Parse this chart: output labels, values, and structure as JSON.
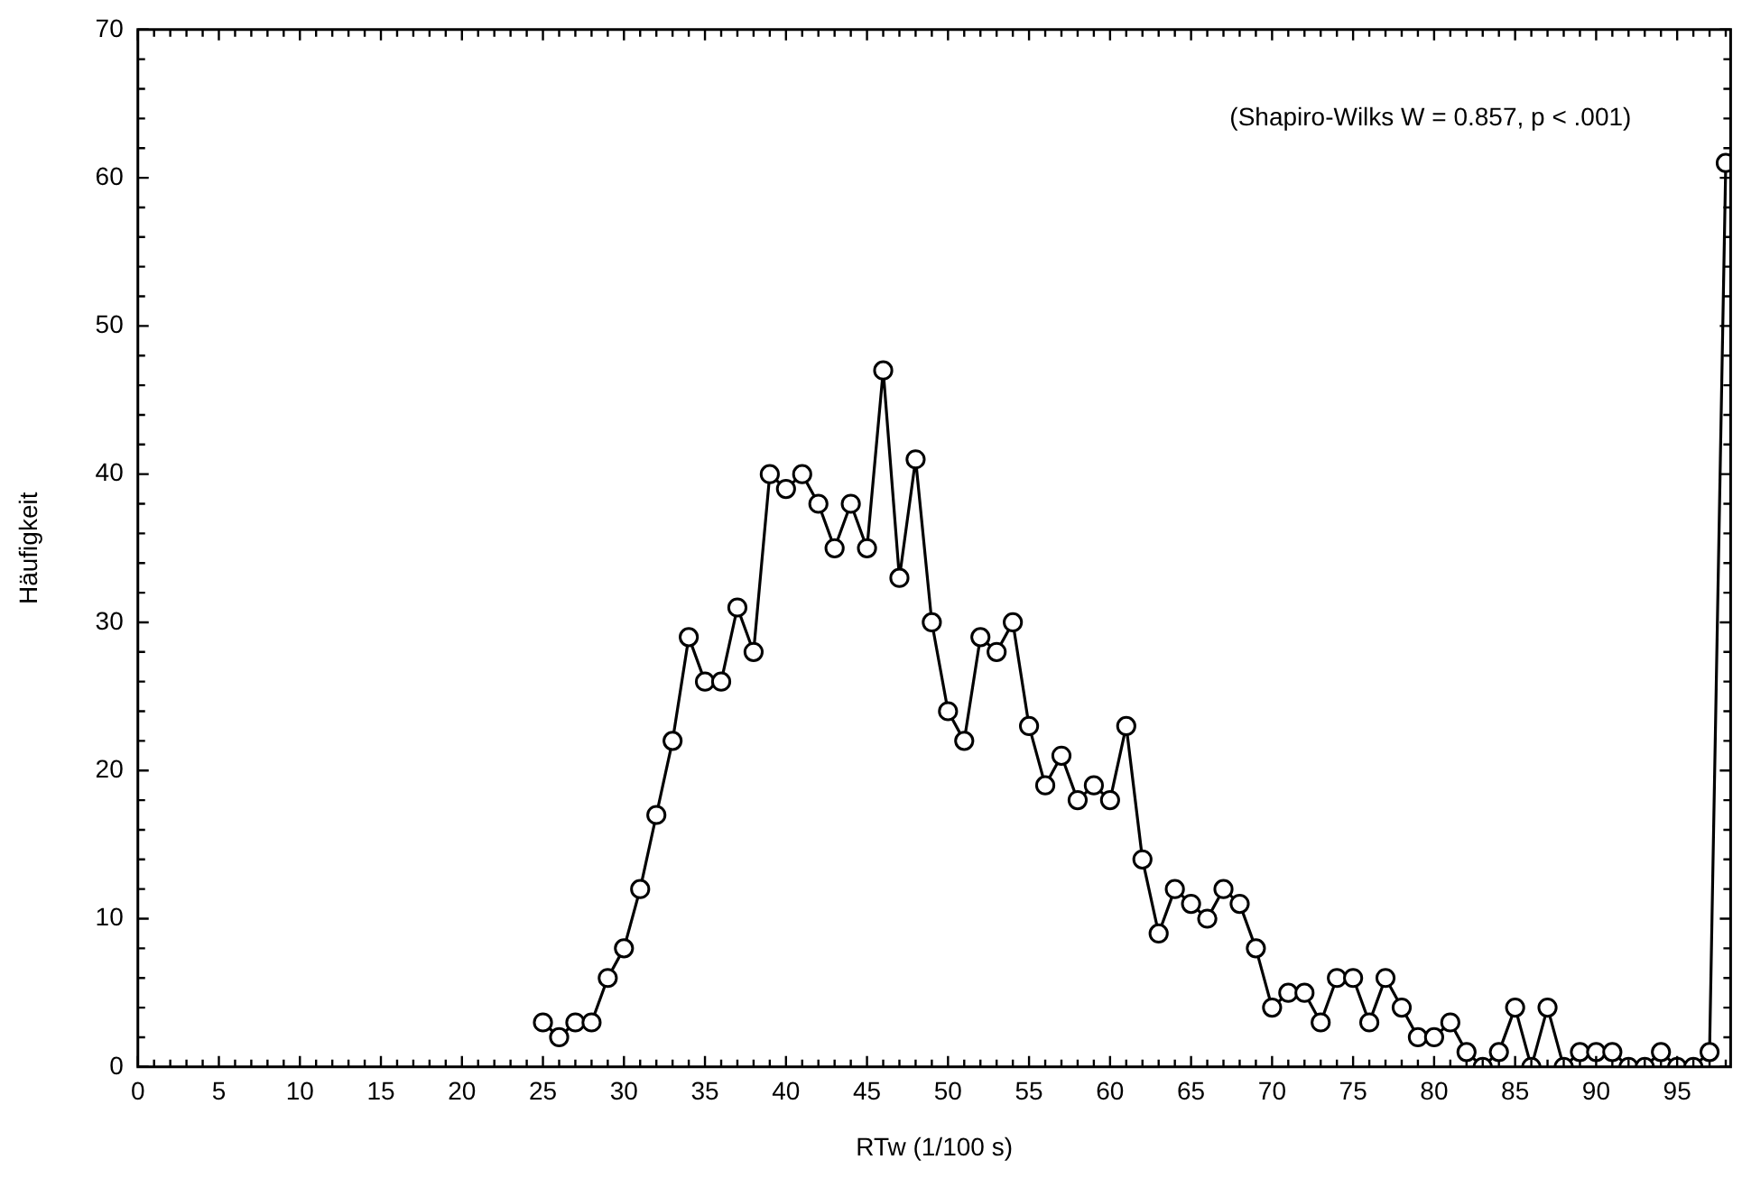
{
  "chart_data": {
    "type": "line",
    "xlabel": "RTw (1/100 s)",
    "ylabel": "Häufigkeit",
    "annotations": [
      "(Shapiro-Wilks W = 0.857, p < .001)"
    ],
    "x": [
      25,
      26,
      27,
      28,
      29,
      30,
      31,
      32,
      33,
      34,
      35,
      36,
      37,
      38,
      39,
      40,
      41,
      42,
      43,
      44,
      45,
      46,
      47,
      48,
      49,
      50,
      51,
      52,
      53,
      54,
      55,
      56,
      57,
      58,
      59,
      60,
      61,
      62,
      63,
      64,
      65,
      66,
      67,
      68,
      69,
      70,
      71,
      72,
      73,
      74,
      75,
      76,
      77,
      78,
      79,
      80,
      81,
      82,
      83,
      84,
      85,
      86,
      87,
      88,
      89,
      90,
      91,
      92,
      93,
      94,
      95,
      96,
      97,
      98
    ],
    "series": [
      {
        "color": "#000000",
        "values": [
          3,
          2,
          3,
          3,
          6,
          8,
          12,
          17,
          22,
          29,
          26,
          26,
          31,
          28,
          40,
          39,
          40,
          38,
          35,
          38,
          35,
          47,
          33,
          41,
          30,
          24,
          22,
          29,
          28,
          30,
          23,
          19,
          21,
          18,
          19,
          18,
          23,
          14,
          9,
          12,
          11,
          10,
          12,
          11,
          8,
          4,
          5,
          5,
          3,
          6,
          6,
          3,
          6,
          4,
          2,
          2,
          3,
          1,
          0,
          1,
          4,
          0,
          4,
          0,
          1,
          1,
          1,
          0,
          0,
          1,
          0,
          0,
          1,
          61
        ]
      }
    ],
    "marker": "circle",
    "line_style": "solid",
    "grid": false,
    "legend": false,
    "xlim": [
      0,
      98.3
    ],
    "xticks": [
      0,
      {
        "value": 1,
        "label": null
      },
      {
        "value": 2,
        "label": null
      },
      {
        "value": 3,
        "label": null
      },
      {
        "value": 4,
        "label": null
      },
      5,
      {
        "value": 6,
        "label": null
      },
      {
        "value": 7,
        "label": null
      },
      {
        "value": 8,
        "label": null
      },
      {
        "value": 9,
        "label": null
      },
      10,
      {
        "value": 11,
        "label": null
      },
      {
        "value": 12,
        "label": null
      },
      {
        "value": 13,
        "label": null
      },
      {
        "value": 14,
        "label": null
      },
      15,
      {
        "value": 16,
        "label": null
      },
      {
        "value": 17,
        "label": null
      },
      {
        "value": 18,
        "label": null
      },
      {
        "value": 19,
        "label": null
      },
      20,
      {
        "value": 21,
        "label": null
      },
      {
        "value": 22,
        "label": null
      },
      {
        "value": 23,
        "label": null
      },
      {
        "value": 24,
        "label": null
      },
      25,
      {
        "value": 26,
        "label": null
      },
      {
        "value": 27,
        "label": null
      },
      {
        "value": 28,
        "label": null
      },
      {
        "value": 29,
        "label": null
      },
      30,
      {
        "value": 31,
        "label": null
      },
      {
        "value": 32,
        "label": null
      },
      {
        "value": 33,
        "label": null
      },
      {
        "value": 34,
        "label": null
      },
      35,
      {
        "value": 36,
        "label": null
      },
      {
        "value": 37,
        "label": null
      },
      {
        "value": 38,
        "label": null
      },
      {
        "value": 39,
        "label": null
      },
      40,
      {
        "value": 41,
        "label": null
      },
      {
        "value": 42,
        "label": null
      },
      {
        "value": 43,
        "label": null
      },
      {
        "value": 44,
        "label": null
      },
      45,
      {
        "value": 46,
        "label": null
      },
      {
        "value": 47,
        "label": null
      },
      {
        "value": 48,
        "label": null
      },
      {
        "value": 49,
        "label": null
      },
      50,
      {
        "value": 51,
        "label": null
      },
      {
        "value": 52,
        "label": null
      },
      {
        "value": 53,
        "label": null
      },
      {
        "value": 54,
        "label": null
      },
      55,
      {
        "value": 56,
        "label": null
      },
      {
        "value": 57,
        "label": null
      },
      {
        "value": 58,
        "label": null
      },
      {
        "value": 59,
        "label": null
      },
      60,
      {
        "value": 61,
        "label": null
      },
      {
        "value": 62,
        "label": null
      },
      {
        "value": 63,
        "label": null
      },
      {
        "value": 64,
        "label": null
      },
      65,
      {
        "value": 66,
        "label": null
      },
      {
        "value": 67,
        "label": null
      },
      {
        "value": 68,
        "label": null
      },
      {
        "value": 69,
        "label": null
      },
      70,
      {
        "value": 71,
        "label": null
      },
      {
        "value": 72,
        "label": null
      },
      {
        "value": 73,
        "label": null
      },
      {
        "value": 74,
        "label": null
      },
      75,
      {
        "value": 76,
        "label": null
      },
      {
        "value": 77,
        "label": null
      },
      {
        "value": 78,
        "label": null
      },
      {
        "value": 79,
        "label": null
      },
      80,
      {
        "value": 81,
        "label": null
      },
      {
        "value": 82,
        "label": null
      },
      {
        "value": 83,
        "label": null
      },
      {
        "value": 84,
        "label": null
      },
      85,
      {
        "value": 86,
        "label": null
      },
      {
        "value": 87,
        "label": null
      },
      {
        "value": 88,
        "label": null
      },
      {
        "value": 89,
        "label": null
      },
      90,
      {
        "value": 91,
        "label": null
      },
      {
        "value": 92,
        "label": null
      },
      {
        "value": 93,
        "label": null
      },
      {
        "value": 94,
        "label": null
      },
      95,
      {
        "value": 96,
        "label": null
      },
      {
        "value": 97,
        "label": null
      },
      {
        "value": 98,
        "label": null
      }
    ],
    "ylim": [
      0,
      70
    ],
    "yticks": [
      0,
      {
        "value": 2,
        "label": null
      },
      {
        "value": 4,
        "label": null
      },
      {
        "value": 6,
        "label": null
      },
      {
        "value": 8,
        "label": null
      },
      10,
      {
        "value": 12,
        "label": null
      },
      {
        "value": 14,
        "label": null
      },
      {
        "value": 16,
        "label": null
      },
      {
        "value": 18,
        "label": null
      },
      20,
      {
        "value": 22,
        "label": null
      },
      {
        "value": 24,
        "label": null
      },
      {
        "value": 26,
        "label": null
      },
      {
        "value": 28,
        "label": null
      },
      30,
      {
        "value": 32,
        "label": null
      },
      {
        "value": 34,
        "label": null
      },
      {
        "value": 36,
        "label": null
      },
      {
        "value": 38,
        "label": null
      },
      40,
      {
        "value": 42,
        "label": null
      },
      {
        "value": 44,
        "label": null
      },
      {
        "value": 46,
        "label": null
      },
      {
        "value": 48,
        "label": null
      },
      50,
      {
        "value": 52,
        "label": null
      },
      {
        "value": 54,
        "label": null
      },
      {
        "value": 56,
        "label": null
      },
      {
        "value": 58,
        "label": null
      },
      60,
      {
        "value": 62,
        "label": null
      },
      {
        "value": 64,
        "label": null
      },
      {
        "value": 66,
        "label": null
      },
      {
        "value": 68,
        "label": null
      },
      70
    ]
  }
}
